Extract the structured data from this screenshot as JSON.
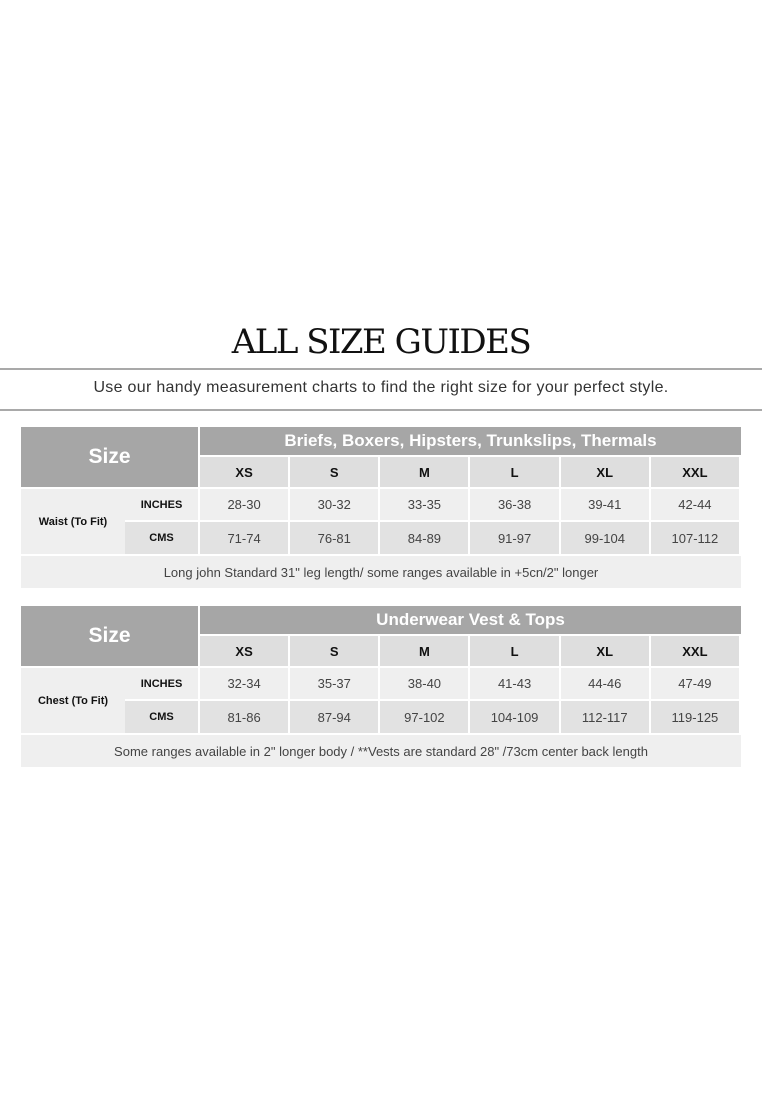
{
  "title": "ALL SIZE GUIDES",
  "subtitle": "Use our handy measurement charts to find the right size for your perfect style.",
  "tables": [
    {
      "size_label": "Size",
      "category": "Briefs, Boxers, Hipsters, Trunkslips, Thermals",
      "sizes": [
        "XS",
        "S",
        "M",
        "L",
        "XL",
        "XXL"
      ],
      "measurement": "Waist (To Fit)",
      "rows": [
        {
          "unit": "INCHES",
          "values": [
            "28-30",
            "30-32",
            "33-35",
            "36-38",
            "39-41",
            "42-44"
          ]
        },
        {
          "unit": "CMS",
          "values": [
            "71-74",
            "76-81",
            "84-89",
            "91-97",
            "99-104",
            "107-112"
          ]
        }
      ],
      "note": "Long john Standard 31\" leg length/ some ranges available in +5cn/2\" longer"
    },
    {
      "size_label": "Size",
      "category": "Underwear Vest & Tops",
      "sizes": [
        "XS",
        "S",
        "M",
        "L",
        "XL",
        "XXL"
      ],
      "measurement": "Chest (To Fit)",
      "rows": [
        {
          "unit": "INCHES",
          "values": [
            "32-34",
            "35-37",
            "38-40",
            "41-43",
            "44-46",
            "47-49"
          ]
        },
        {
          "unit": "CMS",
          "values": [
            "81-86",
            "87-94",
            "97-102",
            "104-109",
            "112-117",
            "119-125"
          ]
        }
      ],
      "note": "Some ranges available in 2\" longer body / **Vests are standard 28\" /73cm center back length"
    }
  ]
}
